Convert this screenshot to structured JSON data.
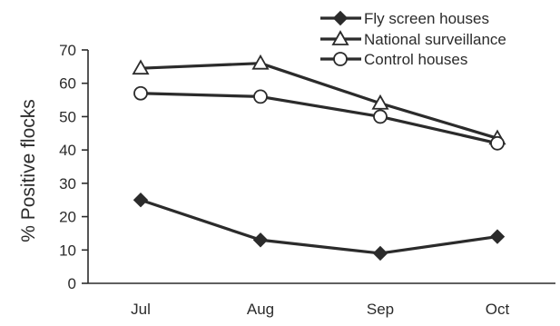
{
  "chart_data": {
    "type": "line",
    "title": "",
    "xlabel": "",
    "ylabel": "% Positive flocks",
    "categories": [
      "Jul",
      "Aug",
      "Sep",
      "Oct"
    ],
    "ylim": [
      0,
      70
    ],
    "yticks": [
      0,
      10,
      20,
      30,
      40,
      50,
      60,
      70
    ],
    "grid": false,
    "legend_position": "top-right",
    "series": [
      {
        "name": "Fly screen houses",
        "marker": "diamond-filled",
        "values": [
          25,
          13,
          9,
          14
        ]
      },
      {
        "name": "National surveillance",
        "marker": "triangle-open",
        "values": [
          64.5,
          66,
          54,
          43.5
        ]
      },
      {
        "name": "Control houses",
        "marker": "circle-open",
        "values": [
          57,
          56,
          50,
          42
        ]
      }
    ]
  }
}
